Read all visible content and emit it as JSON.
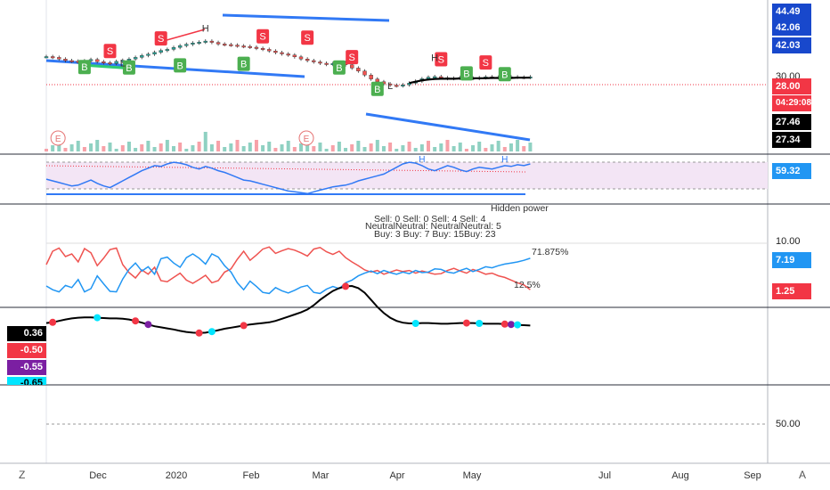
{
  "chart_data": {
    "type": "line",
    "panes": [
      {
        "name": "price",
        "price_axis": [
          "44.49",
          "42.06",
          "42.03",
          "30.00",
          "28.00",
          "27.46",
          "27.34"
        ],
        "countdown": "04:29:08",
        "series": [
          {
            "values": [
              38.5,
              38.2,
              37.6,
              37.0,
              36.8,
              36.5,
              36.9,
              37.4,
              36.6,
              36.2,
              35.9,
              36.7,
              37.1,
              37.6,
              38.2,
              38.9,
              39.4,
              40.1,
              40.8,
              41.2,
              41.9,
              42.6,
              43.1,
              43.6,
              43.9,
              44.3,
              43.8,
              43.2,
              43.0,
              42.8,
              42.5,
              42.3,
              42.0,
              41.6,
              41.2,
              40.6,
              40.0,
              39.5,
              39.1,
              38.4,
              37.6,
              37.0,
              36.5,
              36.0,
              35.6,
              35.9,
              36.3,
              35.4,
              34.2,
              33.1,
              31.6,
              30.1,
              29.1,
              28.3,
              27.8,
              27.6,
              27.9,
              28.6,
              29.3,
              30.2,
              30.8,
              31.0,
              30.6,
              30.3,
              30.4,
              30.7,
              30.5,
              30.3,
              30.6,
              30.9,
              30.8,
              30.6,
              30.7,
              30.9,
              30.8,
              30.7,
              30.9
            ]
          }
        ],
        "ma_line": [
          28.6,
          29.1,
          29.6,
          29.9,
          30.1,
          30.2,
          30.2,
          30.2,
          30.3,
          30.3,
          30.4,
          30.4,
          30.4,
          30.5,
          30.5,
          30.5,
          30.5,
          30.6,
          30.6,
          30.6
        ],
        "markers": [
          {
            "text": "S",
            "i": 10,
            "v": 40.6,
            "kind": "sell"
          },
          {
            "text": "B",
            "i": 6,
            "v": 34.6,
            "kind": "buy"
          },
          {
            "text": "B",
            "i": 13,
            "v": 34.4,
            "kind": "buy"
          },
          {
            "text": "B",
            "i": 21,
            "v": 35.2,
            "kind": "buy"
          },
          {
            "text": "S",
            "i": 18,
            "v": 45.3,
            "kind": "sell"
          },
          {
            "text": "B",
            "i": 31,
            "v": 35.8,
            "kind": "buy"
          },
          {
            "text": "S",
            "i": 34,
            "v": 46.1,
            "kind": "sell"
          },
          {
            "text": "S",
            "i": 41,
            "v": 45.6,
            "kind": "sell"
          },
          {
            "text": "S",
            "i": 48,
            "v": 38.3,
            "kind": "sell"
          },
          {
            "text": "B",
            "i": 46,
            "v": 34.4,
            "kind": "buy"
          },
          {
            "text": "B",
            "i": 52,
            "v": 26.4,
            "kind": "buy"
          },
          {
            "text": "S",
            "i": 62,
            "v": 37.5,
            "kind": "sell"
          },
          {
            "text": "B",
            "i": 66,
            "v": 32.2,
            "kind": "buy"
          },
          {
            "text": "S",
            "i": 69,
            "v": 36.3,
            "kind": "sell"
          },
          {
            "text": "B",
            "i": 72,
            "v": 31.9,
            "kind": "buy"
          }
        ],
        "pivots": [
          {
            "text": "H",
            "i": 25,
            "v": 47.8
          },
          {
            "text": "H",
            "i": 61,
            "v": 36.9
          },
          {
            "text": "L",
            "i": 12,
            "v": 34.9
          },
          {
            "text": "L",
            "i": 54,
            "v": 26.3
          }
        ],
        "earnings": [
          {
            "text": "E",
            "i": 1
          },
          {
            "text": "E",
            "i": 40
          }
        ]
      },
      {
        "name": "rsi",
        "value_label": "59.32",
        "labels": [
          "H",
          "H"
        ],
        "values": [
          42,
          40,
          38,
          36,
          34,
          35,
          38,
          41,
          37,
          34,
          32,
          36,
          40,
          44,
          48,
          52,
          55,
          58,
          57,
          60,
          62,
          61,
          59,
          56,
          54,
          57,
          55,
          52,
          50,
          47,
          44,
          41,
          40,
          38,
          36,
          34,
          32,
          30,
          28,
          27,
          26,
          25,
          27,
          29,
          31,
          33,
          34,
          35,
          37,
          40,
          42,
          44,
          46,
          48,
          52,
          56,
          60,
          62,
          61,
          58,
          54,
          52,
          55,
          58,
          56,
          53,
          51,
          54,
          56,
          55,
          54,
          56,
          58,
          57,
          59,
          58,
          60
        ]
      },
      {
        "name": "power",
        "title": "Hidden power",
        "text_rows": [
          "Sell: 0  Sell: 0   Sell: 4  Sell: 4",
          "NeutralNeutral: NeutralNeutral: 5",
          "Buy: 3  Buy: 7    Buy: 15Buy: 23"
        ],
        "axis_value": "10.00",
        "blue_label": "7.19",
        "red_label": "1.25",
        "pct_high": "71.875%",
        "pct_low": "12.5%",
        "red": [
          6.0,
          8.5,
          9.1,
          7.5,
          8.0,
          6.5,
          9.0,
          8.2,
          5.8,
          7.2,
          8.8,
          9.1,
          6.0,
          4.5,
          3.5,
          5.0,
          4.2,
          5.5,
          3.0,
          2.8,
          3.6,
          4.4,
          3.1,
          2.5,
          3.2,
          4.0,
          2.6,
          3.0,
          4.6,
          5.2,
          7.0,
          8.5,
          6.8,
          7.8,
          8.9,
          9.3,
          8.1,
          8.6,
          9.0,
          8.7,
          8.2,
          7.6,
          8.9,
          9.2,
          8.4,
          7.9,
          8.5,
          7.3,
          6.5,
          5.8,
          5.0,
          4.6,
          4.9,
          4.2,
          4.6,
          5.0,
          4.7,
          4.9,
          4.4,
          4.8,
          4.5,
          4.2,
          4.3,
          4.9,
          5.3,
          4.8,
          4.4,
          5.1,
          4.7,
          4.2,
          4.4,
          3.9,
          3.6,
          3.1,
          2.6,
          2.2,
          1.3
        ],
        "blue": [
          2.0,
          1.3,
          0.9,
          2.1,
          1.7,
          3.2,
          0.9,
          1.5,
          3.9,
          2.4,
          1.0,
          0.9,
          3.3,
          5.1,
          6.3,
          4.8,
          5.6,
          4.2,
          7.1,
          7.4,
          6.3,
          5.5,
          7.3,
          8.0,
          7.2,
          6.1,
          8.0,
          7.4,
          5.8,
          4.6,
          2.6,
          1.3,
          2.9,
          1.9,
          0.8,
          0.6,
          1.7,
          1.1,
          0.7,
          1.2,
          1.8,
          2.1,
          0.8,
          0.6,
          1.4,
          1.9,
          1.5,
          2.6,
          3.1,
          3.9,
          4.4,
          4.8,
          4.3,
          4.9,
          4.5,
          4.2,
          4.6,
          4.3,
          4.9,
          4.5,
          4.6,
          5.2,
          5.1,
          4.6,
          4.4,
          4.9,
          5.3,
          4.7,
          5.1,
          5.6,
          5.4,
          5.8,
          6.1,
          6.3,
          6.5,
          6.8,
          7.19
        ]
      },
      {
        "name": "wave",
        "labels": [
          {
            "value": "0.36",
            "color": "#000000"
          },
          {
            "value": "-0.50",
            "color": "#f23645"
          },
          {
            "value": "-0.55",
            "color": "#7b1fa2"
          },
          {
            "value": "-0.65",
            "color": "#00e5ff"
          }
        ],
        "values": [
          0.1,
          0.08,
          0.04,
          0.0,
          -0.03,
          -0.05,
          -0.06,
          -0.06,
          -0.05,
          -0.04,
          -0.03,
          -0.03,
          -0.02,
          0.0,
          0.04,
          0.09,
          0.14,
          0.19,
          0.22,
          0.25,
          0.28,
          0.32,
          0.35,
          0.37,
          0.38,
          0.37,
          0.34,
          0.3,
          0.26,
          0.23,
          0.2,
          0.17,
          0.14,
          0.12,
          0.1,
          0.08,
          0.04,
          -0.02,
          -0.08,
          -0.14,
          -0.2,
          -0.28,
          -0.4,
          -0.55,
          -0.68,
          -0.8,
          -0.88,
          -0.93,
          -0.94,
          -0.88,
          -0.75,
          -0.55,
          -0.35,
          -0.18,
          -0.05,
          0.04,
          0.09,
          0.11,
          0.11,
          0.1,
          0.1,
          0.11,
          0.12,
          0.12,
          0.11,
          0.1,
          0.1,
          0.1,
          0.11,
          0.12,
          0.12,
          0.12,
          0.13,
          0.14,
          0.15,
          0.16,
          0.17
        ],
        "dots": [
          {
            "i": 1,
            "color": "#f23645"
          },
          {
            "i": 8,
            "color": "#00e5ff"
          },
          {
            "i": 14,
            "color": "#f23645"
          },
          {
            "i": 16,
            "color": "#7b1fa2"
          },
          {
            "i": 24,
            "color": "#f23645"
          },
          {
            "i": 26,
            "color": "#00e5ff"
          },
          {
            "i": 31,
            "color": "#f23645"
          },
          {
            "i": 47,
            "color": "#f23645"
          },
          {
            "i": 58,
            "color": "#00e5ff"
          },
          {
            "i": 66,
            "color": "#f23645"
          },
          {
            "i": 68,
            "color": "#00e5ff"
          },
          {
            "i": 72,
            "color": "#f23645"
          },
          {
            "i": 73,
            "color": "#7b1fa2"
          },
          {
            "i": 74,
            "color": "#00e5ff"
          }
        ]
      },
      {
        "name": "bottom",
        "axis_value": "50.00"
      }
    ],
    "x_ticks": [
      "Dec",
      "2020",
      "Feb",
      "Mar",
      "Apr",
      "May",
      "Jul",
      "Aug",
      "Sep"
    ],
    "corner_left": "Z",
    "corner_right": "A"
  }
}
